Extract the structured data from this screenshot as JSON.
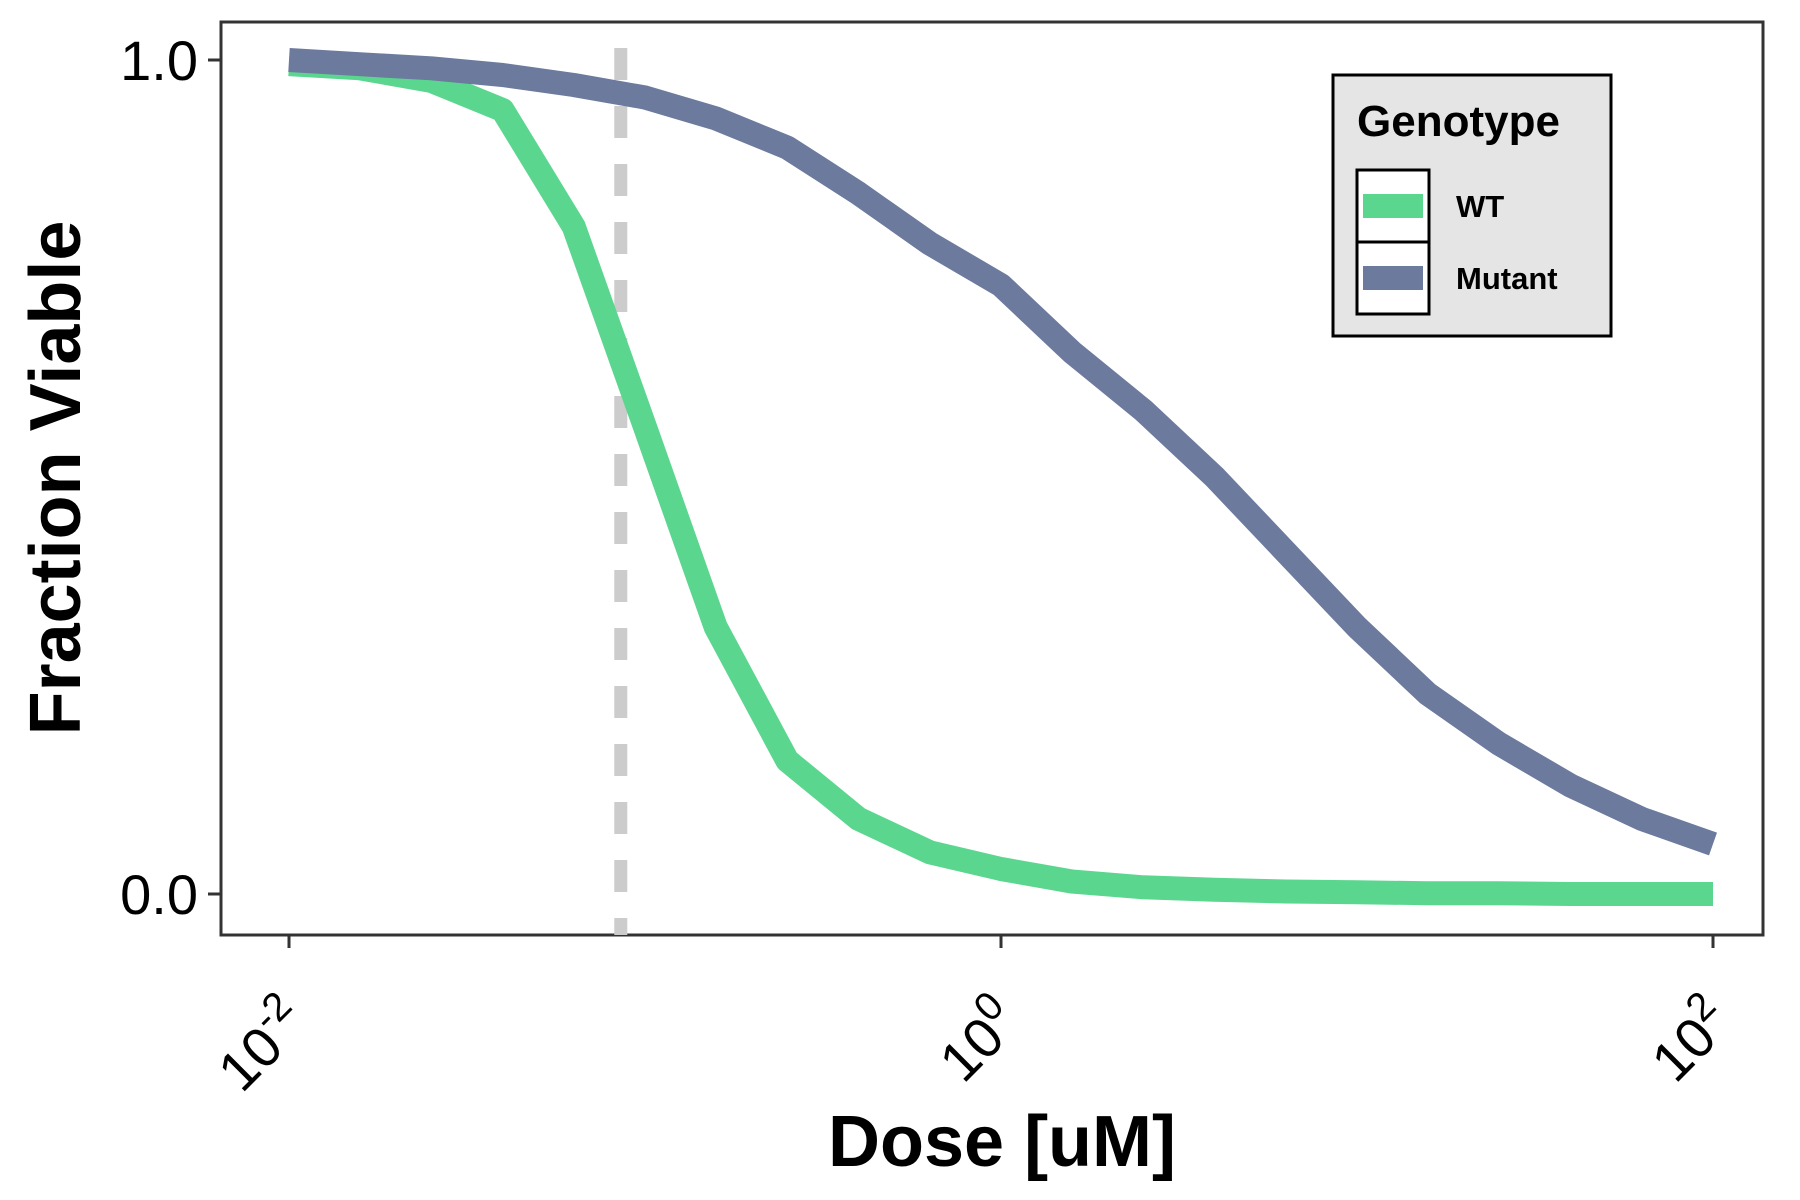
{
  "chart_data": {
    "type": "line",
    "xlabel": "Dose [uM]",
    "ylabel": "Fraction Viable",
    "x_scale": "log10",
    "xlim": [
      0.01,
      100
    ],
    "ylim": [
      0,
      1
    ],
    "x_ticks": [
      {
        "value": 0.01,
        "base": "10",
        "exp": "-2"
      },
      {
        "value": 1,
        "base": "10",
        "exp": "0"
      },
      {
        "value": 100,
        "base": "10",
        "exp": "2"
      }
    ],
    "y_ticks": [
      {
        "value": 0,
        "label": "0.0"
      },
      {
        "value": 1,
        "label": "1.0"
      }
    ],
    "reference_line": {
      "x": 0.0855,
      "style": "dashed",
      "color": "#cccccc"
    },
    "legend": {
      "title": "Genotype",
      "placement": "top-right"
    },
    "grid": false,
    "series": [
      {
        "name": "WT",
        "color": "#5bd68f",
        "x": [
          0.01,
          0.0158,
          0.0251,
          0.0398,
          0.0631,
          0.1,
          0.158,
          0.251,
          0.398,
          0.631,
          1,
          1.58,
          2.51,
          3.98,
          6.31,
          10,
          15.8,
          25.1,
          39.8,
          63.1,
          100
        ],
        "y": [
          0.995,
          0.99,
          0.975,
          0.94,
          0.8,
          0.56,
          0.32,
          0.16,
          0.09,
          0.05,
          0.03,
          0.015,
          0.008,
          0.005,
          0.003,
          0.002,
          0.001,
          0.001,
          0.0,
          0.0,
          0.0
        ]
      },
      {
        "name": "Mutant",
        "color": "#6b7a9d",
        "x": [
          0.01,
          0.0158,
          0.0251,
          0.0398,
          0.0631,
          0.1,
          0.158,
          0.251,
          0.398,
          0.631,
          1,
          1.58,
          2.51,
          3.98,
          6.31,
          10,
          15.8,
          25.1,
          39.8,
          63.1,
          100
        ],
        "y": [
          1.0,
          0.995,
          0.99,
          0.982,
          0.97,
          0.955,
          0.93,
          0.895,
          0.84,
          0.78,
          0.73,
          0.65,
          0.58,
          0.5,
          0.41,
          0.32,
          0.24,
          0.18,
          0.13,
          0.09,
          0.06
        ]
      }
    ]
  }
}
